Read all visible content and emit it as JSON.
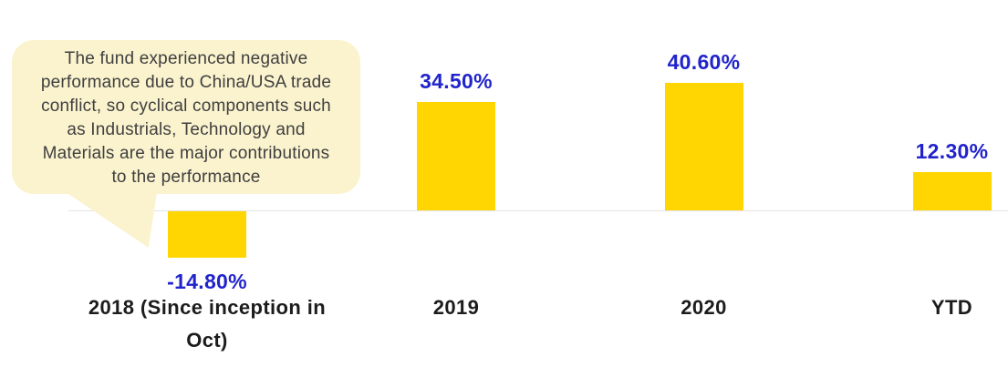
{
  "chart_data": {
    "type": "bar",
    "categories": [
      "2018 (Since inception in Oct)",
      "2019",
      "2020",
      "YTD"
    ],
    "category_display_lines": [
      [
        "2018 (Since inception in",
        "Oct)"
      ],
      [
        "2019"
      ],
      [
        "2020"
      ],
      [
        "YTD"
      ]
    ],
    "values": [
      -14.8,
      34.5,
      40.6,
      12.3
    ],
    "value_labels": [
      "-14.80%",
      "34.50%",
      "40.60%",
      "12.30%"
    ],
    "unit": "%",
    "title": "",
    "xlabel": "",
    "ylabel": "",
    "baseline": 0,
    "grid": "off",
    "legend": "none",
    "bar_color": "#FFD601",
    "value_label_color": "#2124CB",
    "category_label_color": "#1c1c1c",
    "axis_line_color": "#E3E3E3",
    "background_color": "#FFFFFF"
  },
  "annotation": {
    "lines": [
      "The fund experienced negative",
      "performance due to China/USA trade",
      "conflict, so cyclical components such",
      "as Industrials, Technology and",
      "Materials are the major contributions",
      "to the performance"
    ],
    "text": "The fund experienced negative performance due to China/USA trade conflict, so cyclical components such as Industrials, Technology and Materials are the major contributions to the performance",
    "bg_color": "#FAF3CE",
    "text_color": "#3F3F3F"
  }
}
